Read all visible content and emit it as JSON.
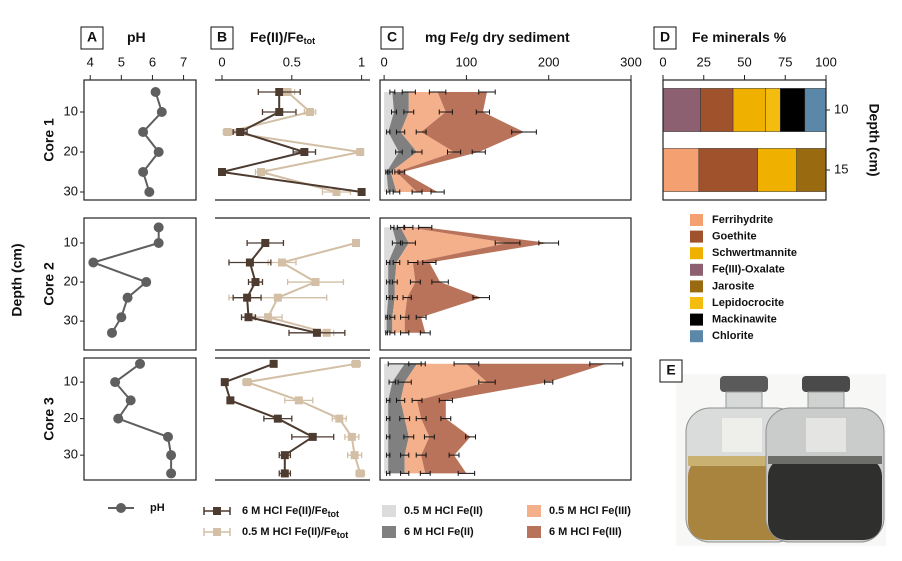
{
  "figure": {
    "ylabel": "Depth (cm)",
    "cores": [
      {
        "name": "Core 1",
        "depth": [
          5,
          10,
          15,
          20,
          25,
          30
        ],
        "ylim": [
          2,
          32
        ],
        "yticks": [
          10,
          20,
          30
        ]
      },
      {
        "name": "Core 2",
        "depth": [
          6,
          10,
          15,
          20,
          24,
          29,
          33
        ],
        "ylim": [
          3.6,
          37.4
        ],
        "yticks": [
          10,
          20,
          30
        ]
      },
      {
        "name": "Core 3",
        "depth": [
          5,
          10,
          15,
          20,
          25,
          30,
          35
        ],
        "ylim": [
          3.4,
          36.8
        ],
        "yticks": [
          10,
          20,
          30
        ]
      }
    ]
  },
  "chart_data": [
    {
      "type": "line",
      "label": "A",
      "title": "pH",
      "xlim": [
        3.8,
        7.4
      ],
      "xticks": [
        4,
        5,
        6,
        7
      ],
      "series": [
        {
          "name": "pH",
          "color": "#5f5f5f"
        }
      ],
      "cores": [
        {
          "values": [
            [
              6.1,
              6.3,
              5.7,
              6.2,
              5.7,
              5.9
            ]
          ]
        },
        {
          "values": [
            [
              6.2,
              6.2,
              4.1,
              5.8,
              5.2,
              5.0,
              4.7
            ]
          ]
        },
        {
          "values": [
            [
              5.6,
              4.8,
              5.3,
              4.9,
              6.5,
              6.6,
              6.6
            ]
          ]
        }
      ]
    },
    {
      "type": "errorline",
      "label": "B",
      "title": "Fe(II)/Fe",
      "title_sub": "tot",
      "xlim": [
        -0.05,
        1.06
      ],
      "xticks": [
        0,
        0.5,
        1
      ],
      "series": [
        {
          "name": "6 M HCl Fe(II)/Fe",
          "name_sub": "tot",
          "color": "#4e3b30"
        },
        {
          "name": "0.5 M HCl Fe(II)/Fe",
          "name_sub": "tot",
          "color": "#d2bfa5"
        }
      ],
      "cores": [
        {
          "values": [
            [
              0.41,
              0.41,
              0.13,
              0.59,
              0,
              1
            ],
            [
              0.47,
              0.63,
              0.04,
              0.99,
              0.28,
              0.82
            ]
          ],
          "errors": [
            [
              0.15,
              0.12,
              0.05,
              0.08,
              0.02,
              0.02
            ],
            [
              0.05,
              0.04,
              0.03,
              0.02,
              0.04,
              0.1
            ]
          ]
        },
        {
          "values": [
            [
              null,
              0.31,
              0.2,
              0.24,
              0.18,
              0.19,
              0.68
            ],
            [
              null,
              0.96,
              0.43,
              0.67,
              0.4,
              0.33,
              0.75
            ]
          ],
          "errors": [
            [
              null,
              0.13,
              0.15,
              0.05,
              0.1,
              0.05,
              0.2
            ],
            [
              null,
              0.02,
              0.1,
              0.2,
              0.35,
              0.1,
              0.05
            ]
          ]
        },
        {
          "values": [
            [
              0.37,
              0.02,
              0.06,
              0.4,
              0.65,
              0.45,
              0.45
            ],
            [
              0.96,
              0.18,
              0.55,
              0.84,
              0.93,
              0.95,
              0.99
            ]
          ],
          "errors": [
            [
              0.02,
              0.02,
              0.02,
              0.1,
              0.15,
              0.04,
              0.04
            ],
            [
              0.03,
              0.03,
              0.1,
              0.05,
              0.05,
              0.05,
              0.03
            ]
          ]
        }
      ]
    },
    {
      "type": "stacked_area",
      "label": "C",
      "title": "mg Fe/g dry sediment",
      "xlim": [
        -5,
        300
      ],
      "xticks": [
        0,
        100,
        200,
        300
      ],
      "series": [
        {
          "name": "0.5 M HCl Fe(II)",
          "color": "#dcdcdc"
        },
        {
          "name": "6 M HCl Fe(II)",
          "color": "#808080"
        },
        {
          "name": "0.5 M HCl Fe(III)",
          "color": "#f4b08a"
        },
        {
          "name": "6 M HCl Fe(III)",
          "color": "#b8735a"
        }
      ],
      "cores": [
        {
          "values": [
            [
              10,
              12,
              5,
              18,
              3,
              5
            ],
            [
              20,
              18,
              15,
              22,
              5,
              10
            ],
            [
              35,
              45,
              25,
              45,
              7,
              25
            ],
            [
              60,
              45,
              125,
              30,
              7,
              25
            ]
          ],
          "errors": [
            [
              3,
              3,
              2,
              4,
              1,
              2
            ],
            [
              8,
              6,
              5,
              6,
              2,
              4
            ],
            [
              10,
              8,
              6,
              8,
              2,
              6
            ],
            [
              10,
              8,
              15,
              8,
              3,
              8
            ]
          ]
        },
        {
          "values": [
            [
              10,
              15,
              5,
              5,
              5,
              3,
              3
            ],
            [
              10,
              15,
              10,
              8,
              8,
              7,
              7
            ],
            [
              10,
              120,
              20,
              25,
              15,
              15,
              15
            ],
            [
              20,
              50,
              20,
              30,
              90,
              20,
              25
            ]
          ],
          "errors": [
            [
              2,
              5,
              2,
              2,
              2,
              1,
              1
            ],
            [
              4,
              8,
              4,
              3,
              3,
              3,
              3
            ],
            [
              5,
              15,
              6,
              6,
              5,
              5,
              5
            ],
            [
              8,
              12,
              8,
              10,
              10,
              6,
              6
            ]
          ]
        },
        {
          "values": [
            [
              25,
              10,
              5,
              5,
              5,
              5,
              5
            ],
            [
              15,
              15,
              15,
              20,
              25,
              20,
              20
            ],
            [
              60,
              100,
              20,
              20,
              25,
              20,
              25
            ],
            [
              170,
              75,
              35,
              30,
              50,
              40,
              50
            ]
          ],
          "errors": [
            [
              20,
              4,
              2,
              2,
              2,
              2,
              2
            ],
            [
              10,
              8,
              5,
              6,
              6,
              5,
              5
            ],
            [
              15,
              10,
              6,
              6,
              6,
              6,
              6
            ],
            [
              20,
              5,
              8,
              6,
              6,
              6,
              10
            ]
          ]
        }
      ]
    },
    {
      "type": "stacked_barh",
      "label": "D",
      "title": "Fe minerals %",
      "xlim": [
        0,
        100
      ],
      "xticks": [
        0,
        25,
        50,
        75,
        100
      ],
      "categories": [
        "10",
        "15"
      ],
      "ylabel": "Depth (cm)",
      "series": [
        {
          "name": "Ferrihydrite",
          "color": "#f4a070",
          "values": [
            null,
            22
          ]
        },
        {
          "name": "Goethite",
          "color": "#a0522d",
          "values": [
            20,
            36
          ]
        },
        {
          "name": "Schwertmannite",
          "color": "#f0b000",
          "values": [
            20,
            24
          ]
        },
        {
          "name": "Fe(III)-Oxalate",
          "color": "#8c6070",
          "values": [
            23,
            null
          ]
        },
        {
          "name": "Jarosite",
          "color": "#9a6a10",
          "values": [
            null,
            18
          ]
        },
        {
          "name": "Lepidocrocite",
          "color": "#f5bc10",
          "values": [
            9,
            null
          ]
        },
        {
          "name": "Mackinawite",
          "color": "#000000",
          "values": [
            15,
            null
          ]
        },
        {
          "name": "Chlorite",
          "color": "#5b87a8",
          "values": [
            13,
            null
          ]
        }
      ]
    }
  ],
  "photo": {
    "label": "E"
  }
}
